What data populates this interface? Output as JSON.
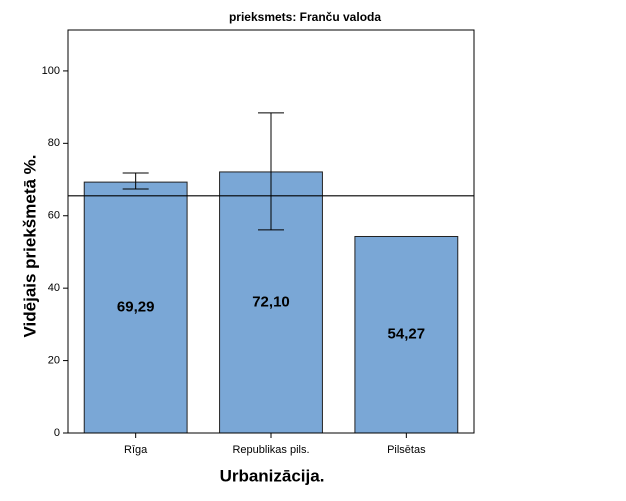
{
  "chart_data": {
    "type": "bar",
    "title": "prieksmets: Franču valoda",
    "y_label": "Vidējais priekšmetā %.",
    "x_label": "Urbanizācija.",
    "categories": [
      "Rīga",
      "Republikas pils.",
      "Pilsētas"
    ],
    "values": [
      69.29,
      72.1,
      54.27
    ],
    "value_labels": [
      "69,29",
      "72,10",
      "54,27"
    ],
    "error_low": [
      67.4,
      56.1,
      null
    ],
    "error_high": [
      71.8,
      88.4,
      null
    ],
    "reference_line": 65.5,
    "color": "#7aa7d6",
    "ylim": [
      0,
      111.3
    ],
    "yticks": [
      0,
      20,
      40,
      60,
      80,
      100
    ]
  }
}
